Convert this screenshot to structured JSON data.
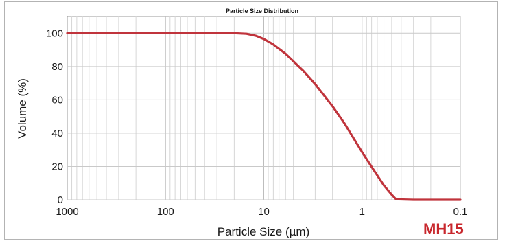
{
  "chart_data": {
    "type": "line",
    "title": "Particle Size Distribution",
    "xlabel": "Particle Size (µm)",
    "ylabel": "Volume (%)",
    "x_scale": "log",
    "x_reversed": true,
    "xlim": [
      1000,
      0.1
    ],
    "ylim": [
      0,
      110
    ],
    "x_ticks": [
      "1000",
      "100",
      "10",
      "1",
      "0.1"
    ],
    "y_ticks": [
      "0",
      "20",
      "40",
      "60",
      "80",
      "100"
    ],
    "grid": true,
    "series": [
      {
        "color": "#c0343c",
        "x": [
          1000,
          100,
          20,
          15,
          12,
          10,
          8,
          6,
          4,
          3,
          2,
          1.5,
          1,
          0.8,
          0.6,
          0.5,
          0.45,
          0.3,
          0.1
        ],
        "y": [
          100,
          100,
          100,
          99.6,
          98.4,
          96.5,
          93.2,
          87.6,
          77.6,
          69.4,
          56.2,
          45.6,
          28.6,
          19.8,
          8.7,
          3.1,
          0.3,
          0,
          0
        ]
      }
    ],
    "annotation": "MH15"
  }
}
